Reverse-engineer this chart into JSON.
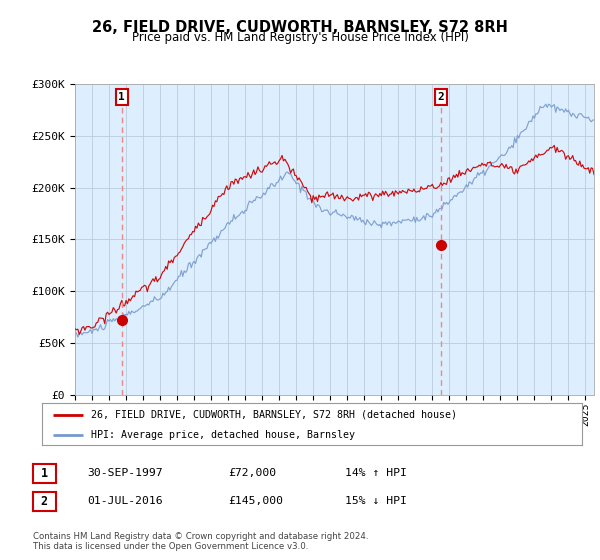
{
  "title": "26, FIELD DRIVE, CUDWORTH, BARNSLEY, S72 8RH",
  "subtitle": "Price paid vs. HM Land Registry's House Price Index (HPI)",
  "legend_label_red": "26, FIELD DRIVE, CUDWORTH, BARNSLEY, S72 8RH (detached house)",
  "legend_label_blue": "HPI: Average price, detached house, Barnsley",
  "footnote": "Contains HM Land Registry data © Crown copyright and database right 2024.\nThis data is licensed under the Open Government Licence v3.0.",
  "table_rows": [
    {
      "num": "1",
      "date": "30-SEP-1997",
      "price": "£72,000",
      "hpi": "14% ↑ HPI"
    },
    {
      "num": "2",
      "date": "01-JUL-2016",
      "price": "£145,000",
      "hpi": "15% ↓ HPI"
    }
  ],
  "marker1_x": 1997.75,
  "marker1_y": 72000,
  "marker2_x": 2016.5,
  "marker2_y": 145000,
  "vline1_x": 1997.75,
  "vline2_x": 2016.5,
  "ylim": [
    0,
    300000
  ],
  "xlim_start": 1995.0,
  "xlim_end": 2025.5,
  "yticks": [
    0,
    50000,
    100000,
    150000,
    200000,
    250000,
    300000
  ],
  "ytick_labels": [
    "£0",
    "£50K",
    "£100K",
    "£150K",
    "£200K",
    "£250K",
    "£300K"
  ],
  "red_color": "#cc0000",
  "blue_color": "#7799cc",
  "vline_color": "#ee8888",
  "bg_chart_color": "#ddeeff",
  "background_color": "#ffffff",
  "grid_color": "#bbccdd"
}
